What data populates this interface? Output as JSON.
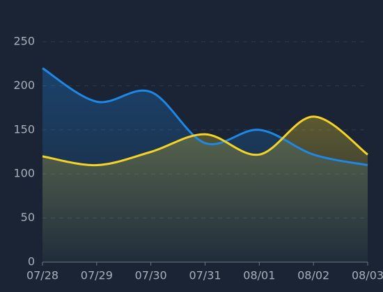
{
  "chart_data": {
    "type": "line",
    "categories": [
      "07/28",
      "07/29",
      "07/30",
      "07/31",
      "08/01",
      "08/02",
      "08/03"
    ],
    "series": [
      {
        "color": "#1e88e5",
        "values": [
          220,
          182,
          193,
          135,
          150,
          122,
          110
        ]
      },
      {
        "color": "#f5d327",
        "values": [
          120,
          110,
          125,
          145,
          122,
          165,
          122
        ]
      }
    ],
    "ylim": [
      0,
      250
    ],
    "yticks": [
      0,
      50,
      100,
      150,
      200,
      250
    ],
    "grid": true
  }
}
